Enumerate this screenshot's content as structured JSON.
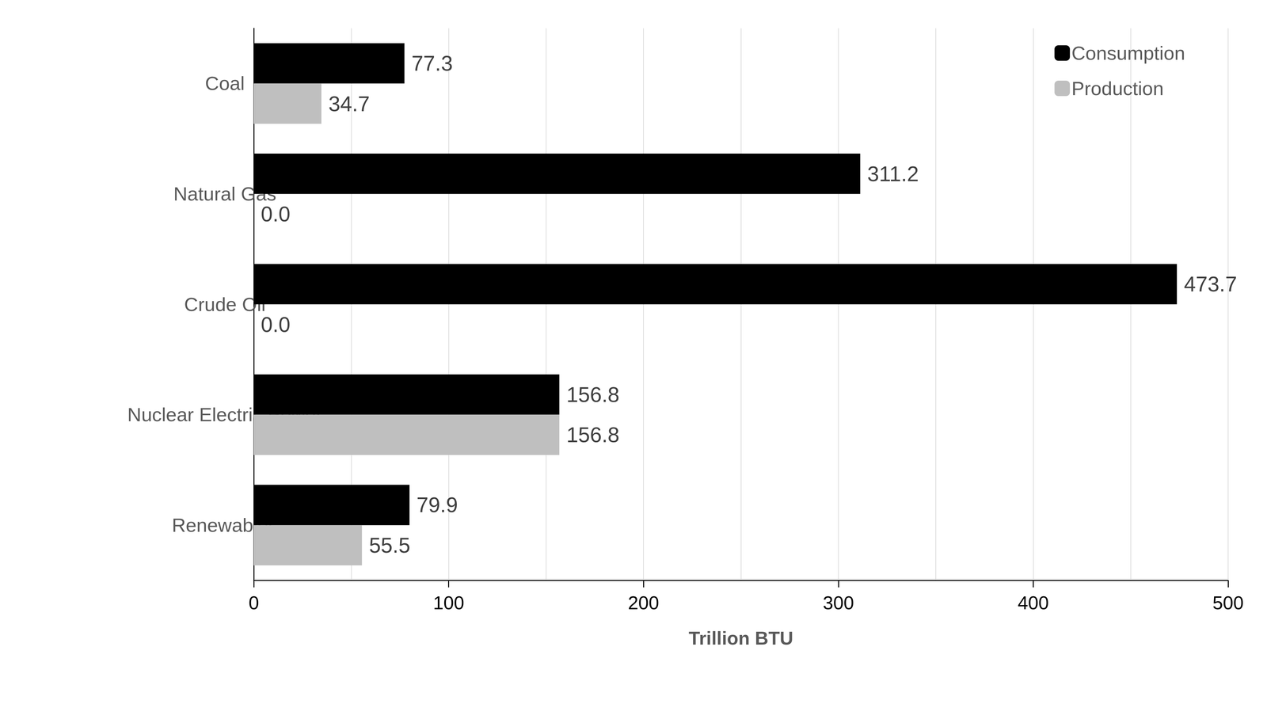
{
  "chart_data": {
    "type": "bar",
    "orientation": "horizontal",
    "categories": [
      "Coal",
      "Natural Gas",
      "Crude Oil",
      "Nuclear Electric Power",
      "Renewables"
    ],
    "series": [
      {
        "name": "Consumption",
        "color": "#000000",
        "values": [
          77.3,
          311.2,
          473.7,
          156.8,
          79.9
        ],
        "value_labels": [
          "77.3",
          "311.2",
          "473.7",
          "156.8",
          "79.9"
        ]
      },
      {
        "name": "Production",
        "color": "#bfbfbf",
        "values": [
          34.7,
          0.0,
          0.0,
          156.8,
          55.5
        ],
        "value_labels": [
          "34.7",
          "0.0",
          "0.0",
          "156.8",
          "55.5"
        ]
      }
    ],
    "x_label": "Trillion BTU",
    "xlim": [
      0,
      500
    ],
    "xticks": [
      0,
      100,
      200,
      300,
      400,
      500
    ],
    "grid": true,
    "legend": "upper right",
    "data_labels": true
  }
}
